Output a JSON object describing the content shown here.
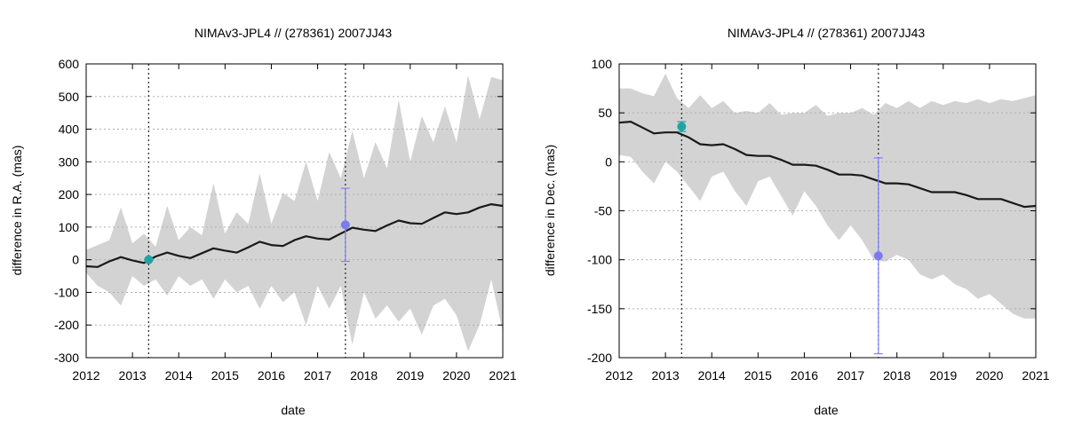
{
  "colors": {
    "band": "#d3d3d3",
    "line": "#1a1a1a",
    "marker_teal": "#20a3a3",
    "marker_blue": "#7b7bf0",
    "errbar": "#8080ff",
    "grid": "#b0b0b0"
  },
  "chart_data": [
    {
      "type": "line",
      "title": "NIMAv3-JPL4 // (278361) 2007JJ43",
      "xlabel": "date",
      "ylabel": "difference in R.A. (mas)",
      "xlim": [
        2012,
        2021
      ],
      "ylim": [
        -300,
        600
      ],
      "xticks": [
        2012,
        2013,
        2014,
        2015,
        2016,
        2017,
        2018,
        2019,
        2020,
        2021
      ],
      "yticks": [
        -300,
        -200,
        -100,
        0,
        100,
        200,
        300,
        400,
        500,
        600
      ],
      "vlines": [
        2013.35,
        2017.6
      ],
      "series": [
        {
          "name": "NIMAv3-JPL4",
          "x": [
            2012.0,
            2012.25,
            2012.5,
            2012.75,
            2013.0,
            2013.25,
            2013.5,
            2013.75,
            2014.0,
            2014.25,
            2014.5,
            2014.75,
            2015.0,
            2015.25,
            2015.5,
            2015.75,
            2016.0,
            2016.25,
            2016.5,
            2016.75,
            2017.0,
            2017.25,
            2017.5,
            2017.75,
            2018.0,
            2018.25,
            2018.5,
            2018.75,
            2019.0,
            2019.25,
            2019.5,
            2019.75,
            2020.0,
            2020.25,
            2020.5,
            2020.75,
            2021.0
          ],
          "y": [
            -20,
            -22,
            -5,
            8,
            -2,
            -10,
            10,
            22,
            12,
            5,
            20,
            35,
            28,
            22,
            38,
            55,
            45,
            42,
            60,
            72,
            65,
            62,
            80,
            98,
            92,
            88,
            105,
            120,
            112,
            110,
            128,
            145,
            140,
            145,
            160,
            170,
            165
          ]
        }
      ],
      "uncertainty_band": {
        "x": [
          2012.0,
          2012.25,
          2012.5,
          2012.75,
          2013.0,
          2013.25,
          2013.5,
          2013.75,
          2014.0,
          2014.25,
          2014.5,
          2014.75,
          2015.0,
          2015.25,
          2015.5,
          2015.75,
          2016.0,
          2016.25,
          2016.5,
          2016.75,
          2017.0,
          2017.25,
          2017.5,
          2017.75,
          2018.0,
          2018.25,
          2018.5,
          2018.75,
          2019.0,
          2019.25,
          2019.5,
          2019.75,
          2020.0,
          2020.25,
          2020.5,
          2020.75,
          2021.0
        ],
        "upper": [
          30,
          45,
          60,
          160,
          50,
          80,
          40,
          165,
          60,
          100,
          75,
          235,
          80,
          145,
          110,
          265,
          110,
          205,
          180,
          300,
          180,
          330,
          250,
          395,
          250,
          360,
          280,
          490,
          300,
          440,
          360,
          470,
          360,
          565,
          430,
          560,
          550
        ],
        "lower": [
          -40,
          -80,
          -100,
          -140,
          -50,
          -80,
          -60,
          -110,
          -50,
          -80,
          -60,
          -120,
          -60,
          -100,
          -80,
          -150,
          -80,
          -130,
          -100,
          -200,
          -80,
          -150,
          -80,
          -260,
          -100,
          -180,
          -140,
          -190,
          -150,
          -230,
          -140,
          -120,
          -170,
          -280,
          -200,
          -60,
          -220
        ]
      },
      "observations": [
        {
          "x": 2013.35,
          "y": 0,
          "yerr": 3,
          "color": "#20a3a3"
        },
        {
          "x": 2017.6,
          "y": 107,
          "yerr": 112,
          "color": "#7b7bf0"
        }
      ]
    },
    {
      "type": "line",
      "title": "NIMAv3-JPL4 // (278361) 2007JJ43",
      "xlabel": "date",
      "ylabel": "difference in Dec. (mas)",
      "xlim": [
        2012,
        2021
      ],
      "ylim": [
        -200,
        100
      ],
      "xticks": [
        2012,
        2013,
        2014,
        2015,
        2016,
        2017,
        2018,
        2019,
        2020,
        2021
      ],
      "yticks": [
        -200,
        -150,
        -100,
        -50,
        0,
        50,
        100
      ],
      "vlines": [
        2013.35,
        2017.6
      ],
      "series": [
        {
          "name": "NIMAv3-JPL4",
          "x": [
            2012.0,
            2012.25,
            2012.5,
            2012.75,
            2013.0,
            2013.25,
            2013.5,
            2013.75,
            2014.0,
            2014.25,
            2014.5,
            2014.75,
            2015.0,
            2015.25,
            2015.5,
            2015.75,
            2016.0,
            2016.25,
            2016.5,
            2016.75,
            2017.0,
            2017.25,
            2017.5,
            2017.75,
            2018.0,
            2018.25,
            2018.5,
            2018.75,
            2019.0,
            2019.25,
            2019.5,
            2019.75,
            2020.0,
            2020.25,
            2020.5,
            2020.75,
            2021.0
          ],
          "y": [
            40,
            41,
            35,
            29,
            30,
            30,
            25,
            18,
            17,
            18,
            13,
            7,
            6,
            6,
            2,
            -3,
            -3,
            -4,
            -8,
            -13,
            -13,
            -14,
            -18,
            -22,
            -22,
            -23,
            -27,
            -31,
            -31,
            -31,
            -34,
            -38,
            -38,
            -38,
            -42,
            -46,
            -45
          ]
        }
      ],
      "uncertainty_band": {
        "x": [
          2012.0,
          2012.25,
          2012.5,
          2012.75,
          2013.0,
          2013.25,
          2013.5,
          2013.75,
          2014.0,
          2014.25,
          2014.5,
          2014.75,
          2015.0,
          2015.25,
          2015.5,
          2015.75,
          2016.0,
          2016.25,
          2016.5,
          2016.75,
          2017.0,
          2017.25,
          2017.5,
          2017.75,
          2018.0,
          2018.25,
          2018.5,
          2018.75,
          2019.0,
          2019.25,
          2019.5,
          2019.75,
          2020.0,
          2020.25,
          2020.5,
          2020.75,
          2021.0
        ],
        "upper": [
          75,
          75,
          70,
          67,
          90,
          65,
          55,
          68,
          55,
          62,
          50,
          52,
          50,
          60,
          48,
          50,
          50,
          58,
          47,
          50,
          50,
          55,
          48,
          60,
          55,
          62,
          55,
          62,
          58,
          62,
          60,
          64,
          60,
          64,
          62,
          65,
          68
        ],
        "lower": [
          7,
          5,
          -10,
          -22,
          0,
          -10,
          -25,
          -40,
          -15,
          -10,
          -30,
          -45,
          -20,
          -15,
          -35,
          -55,
          -30,
          -45,
          -65,
          -80,
          -65,
          -80,
          -100,
          -102,
          -95,
          -100,
          -115,
          -120,
          -115,
          -125,
          -130,
          -140,
          -135,
          -145,
          -155,
          -160,
          -160
        ]
      },
      "observations": [
        {
          "x": 2013.35,
          "y": 36,
          "yerr": 5,
          "color": "#20a3a3"
        },
        {
          "x": 2017.6,
          "y": -96,
          "yerr": 100,
          "color": "#7b7bf0"
        }
      ]
    }
  ]
}
